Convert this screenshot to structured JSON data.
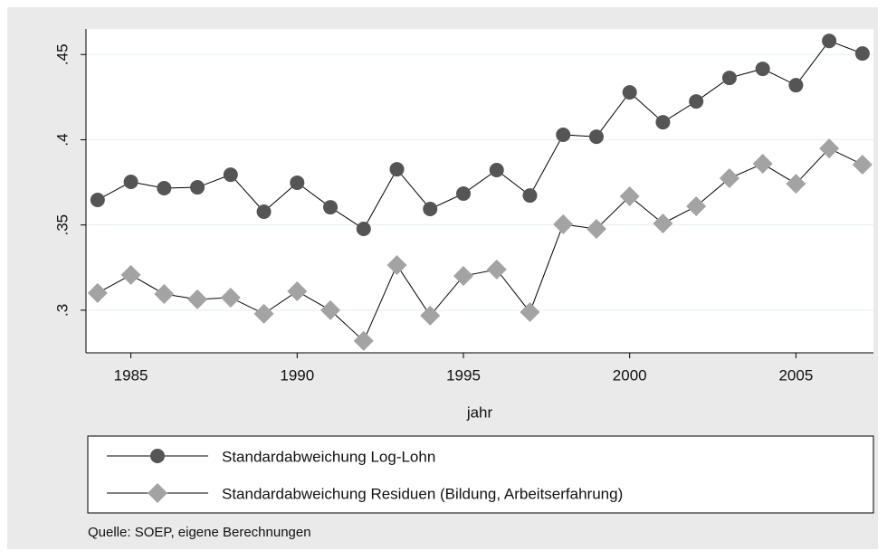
{
  "chart_data": {
    "type": "line",
    "xlabel": "jahr",
    "note": "Quelle: SOEP, eigene Berechnungen",
    "x": [
      1984,
      1985,
      1986,
      1987,
      1988,
      1989,
      1990,
      1991,
      1992,
      1993,
      1994,
      1995,
      1996,
      1997,
      1998,
      1999,
      2000,
      2001,
      2002,
      2003,
      2004,
      2005,
      2006,
      2007
    ],
    "series": [
      {
        "name": "Standardabweichung Log-Lohn",
        "color": "#555555",
        "marker": "circle",
        "values": [
          0.3647,
          0.3753,
          0.3716,
          0.3721,
          0.3795,
          0.3578,
          0.3748,
          0.3604,
          0.3477,
          0.3827,
          0.3594,
          0.3684,
          0.3822,
          0.3673,
          0.4029,
          0.4018,
          0.4278,
          0.4103,
          0.4225,
          0.4363,
          0.4416,
          0.432,
          0.458,
          0.4506
        ]
      },
      {
        "name": "Standardabweichung Residuen (Bildung, Arbeitserfahrung)",
        "color": "#a3a3a3",
        "marker": "diamond",
        "values": [
          0.3101,
          0.3207,
          0.3095,
          0.3064,
          0.3074,
          0.2979,
          0.3111,
          0.3,
          0.282,
          0.3265,
          0.2968,
          0.3201,
          0.3239,
          0.2989,
          0.3504,
          0.3477,
          0.3668,
          0.3509,
          0.361,
          0.3774,
          0.3859,
          0.3742,
          0.3949,
          0.3854
        ]
      }
    ],
    "xlim": [
      1983.65,
      2007.33
    ],
    "xticks": [
      1985,
      1990,
      1995,
      2000,
      2005
    ],
    "ylim": [
      0.275,
      0.465
    ],
    "yticks": [
      {
        "value": 0.3,
        "label": ".3"
      },
      {
        "value": 0.35,
        "label": ".35"
      },
      {
        "value": 0.4,
        "label": ".4"
      },
      {
        "value": 0.45,
        "label": ".45"
      }
    ],
    "grid": true,
    "line_color": "#000000"
  }
}
